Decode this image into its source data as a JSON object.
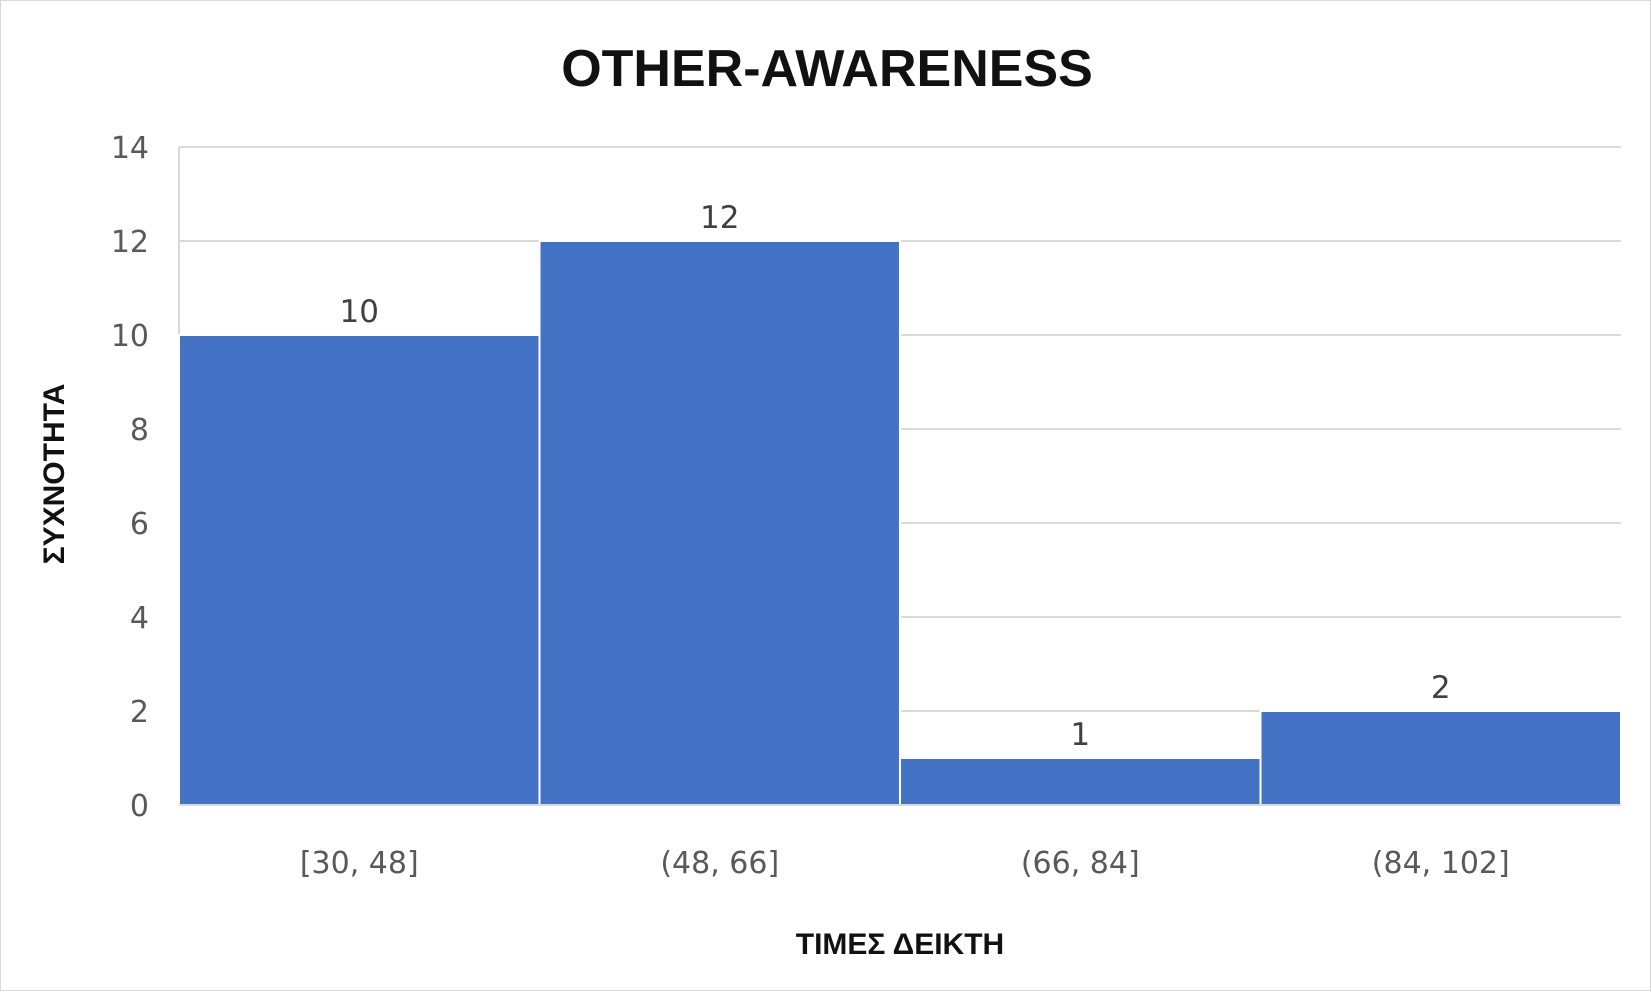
{
  "chart_data": {
    "type": "bar",
    "title": "OTHER-AWARENESS",
    "xlabel": "ΤΙΜΕΣ ΔΕΙΚΤΗ",
    "ylabel": "ΣΥΧΝΟΤΗΤΑ",
    "categories": [
      "[30, 48]",
      "(48, 66]",
      "(66, 84]",
      "(84, 102]"
    ],
    "values": [
      10,
      12,
      1,
      2
    ],
    "data_labels": [
      "10",
      "12",
      "1",
      "2"
    ],
    "ylim": [
      0,
      14
    ],
    "yticks": [
      0,
      2,
      4,
      6,
      8,
      10,
      12,
      14
    ],
    "grid": true,
    "legend": "none",
    "bar_color": "#4472C4",
    "gridline_color": "#d9d9d9"
  }
}
